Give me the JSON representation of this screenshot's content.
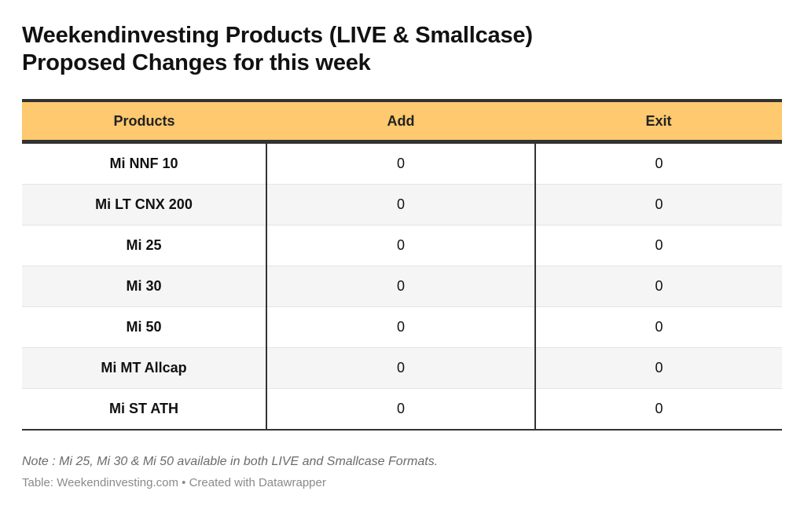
{
  "title_lines": [
    "Weekendinvesting Products (LIVE & Smallcase)",
    "Proposed Changes for this week"
  ],
  "note": "Note : Mi 25, Mi 30 & Mi 50 available in both LIVE and Smallcase Formats.",
  "source": "Table: Weekendinvesting.com • Created with Datawrapper",
  "colors": {
    "header_background": "#fec96f",
    "rule": "#333333",
    "row_stripe": "#f5f5f5"
  },
  "chart_data": {
    "type": "table",
    "title": "Weekendinvesting Products (LIVE & Smallcase) Proposed Changes for this week",
    "columns": [
      "Products",
      "Add",
      "Exit"
    ],
    "rows": [
      [
        "Mi NNF 10",
        "0",
        "0"
      ],
      [
        "Mi LT CNX 200",
        "0",
        "0"
      ],
      [
        "Mi 25",
        "0",
        "0"
      ],
      [
        "Mi 30",
        "0",
        "0"
      ],
      [
        "Mi 50",
        "0",
        "0"
      ],
      [
        "Mi MT Allcap",
        "0",
        "0"
      ],
      [
        "Mi ST ATH",
        "0",
        "0"
      ]
    ]
  }
}
